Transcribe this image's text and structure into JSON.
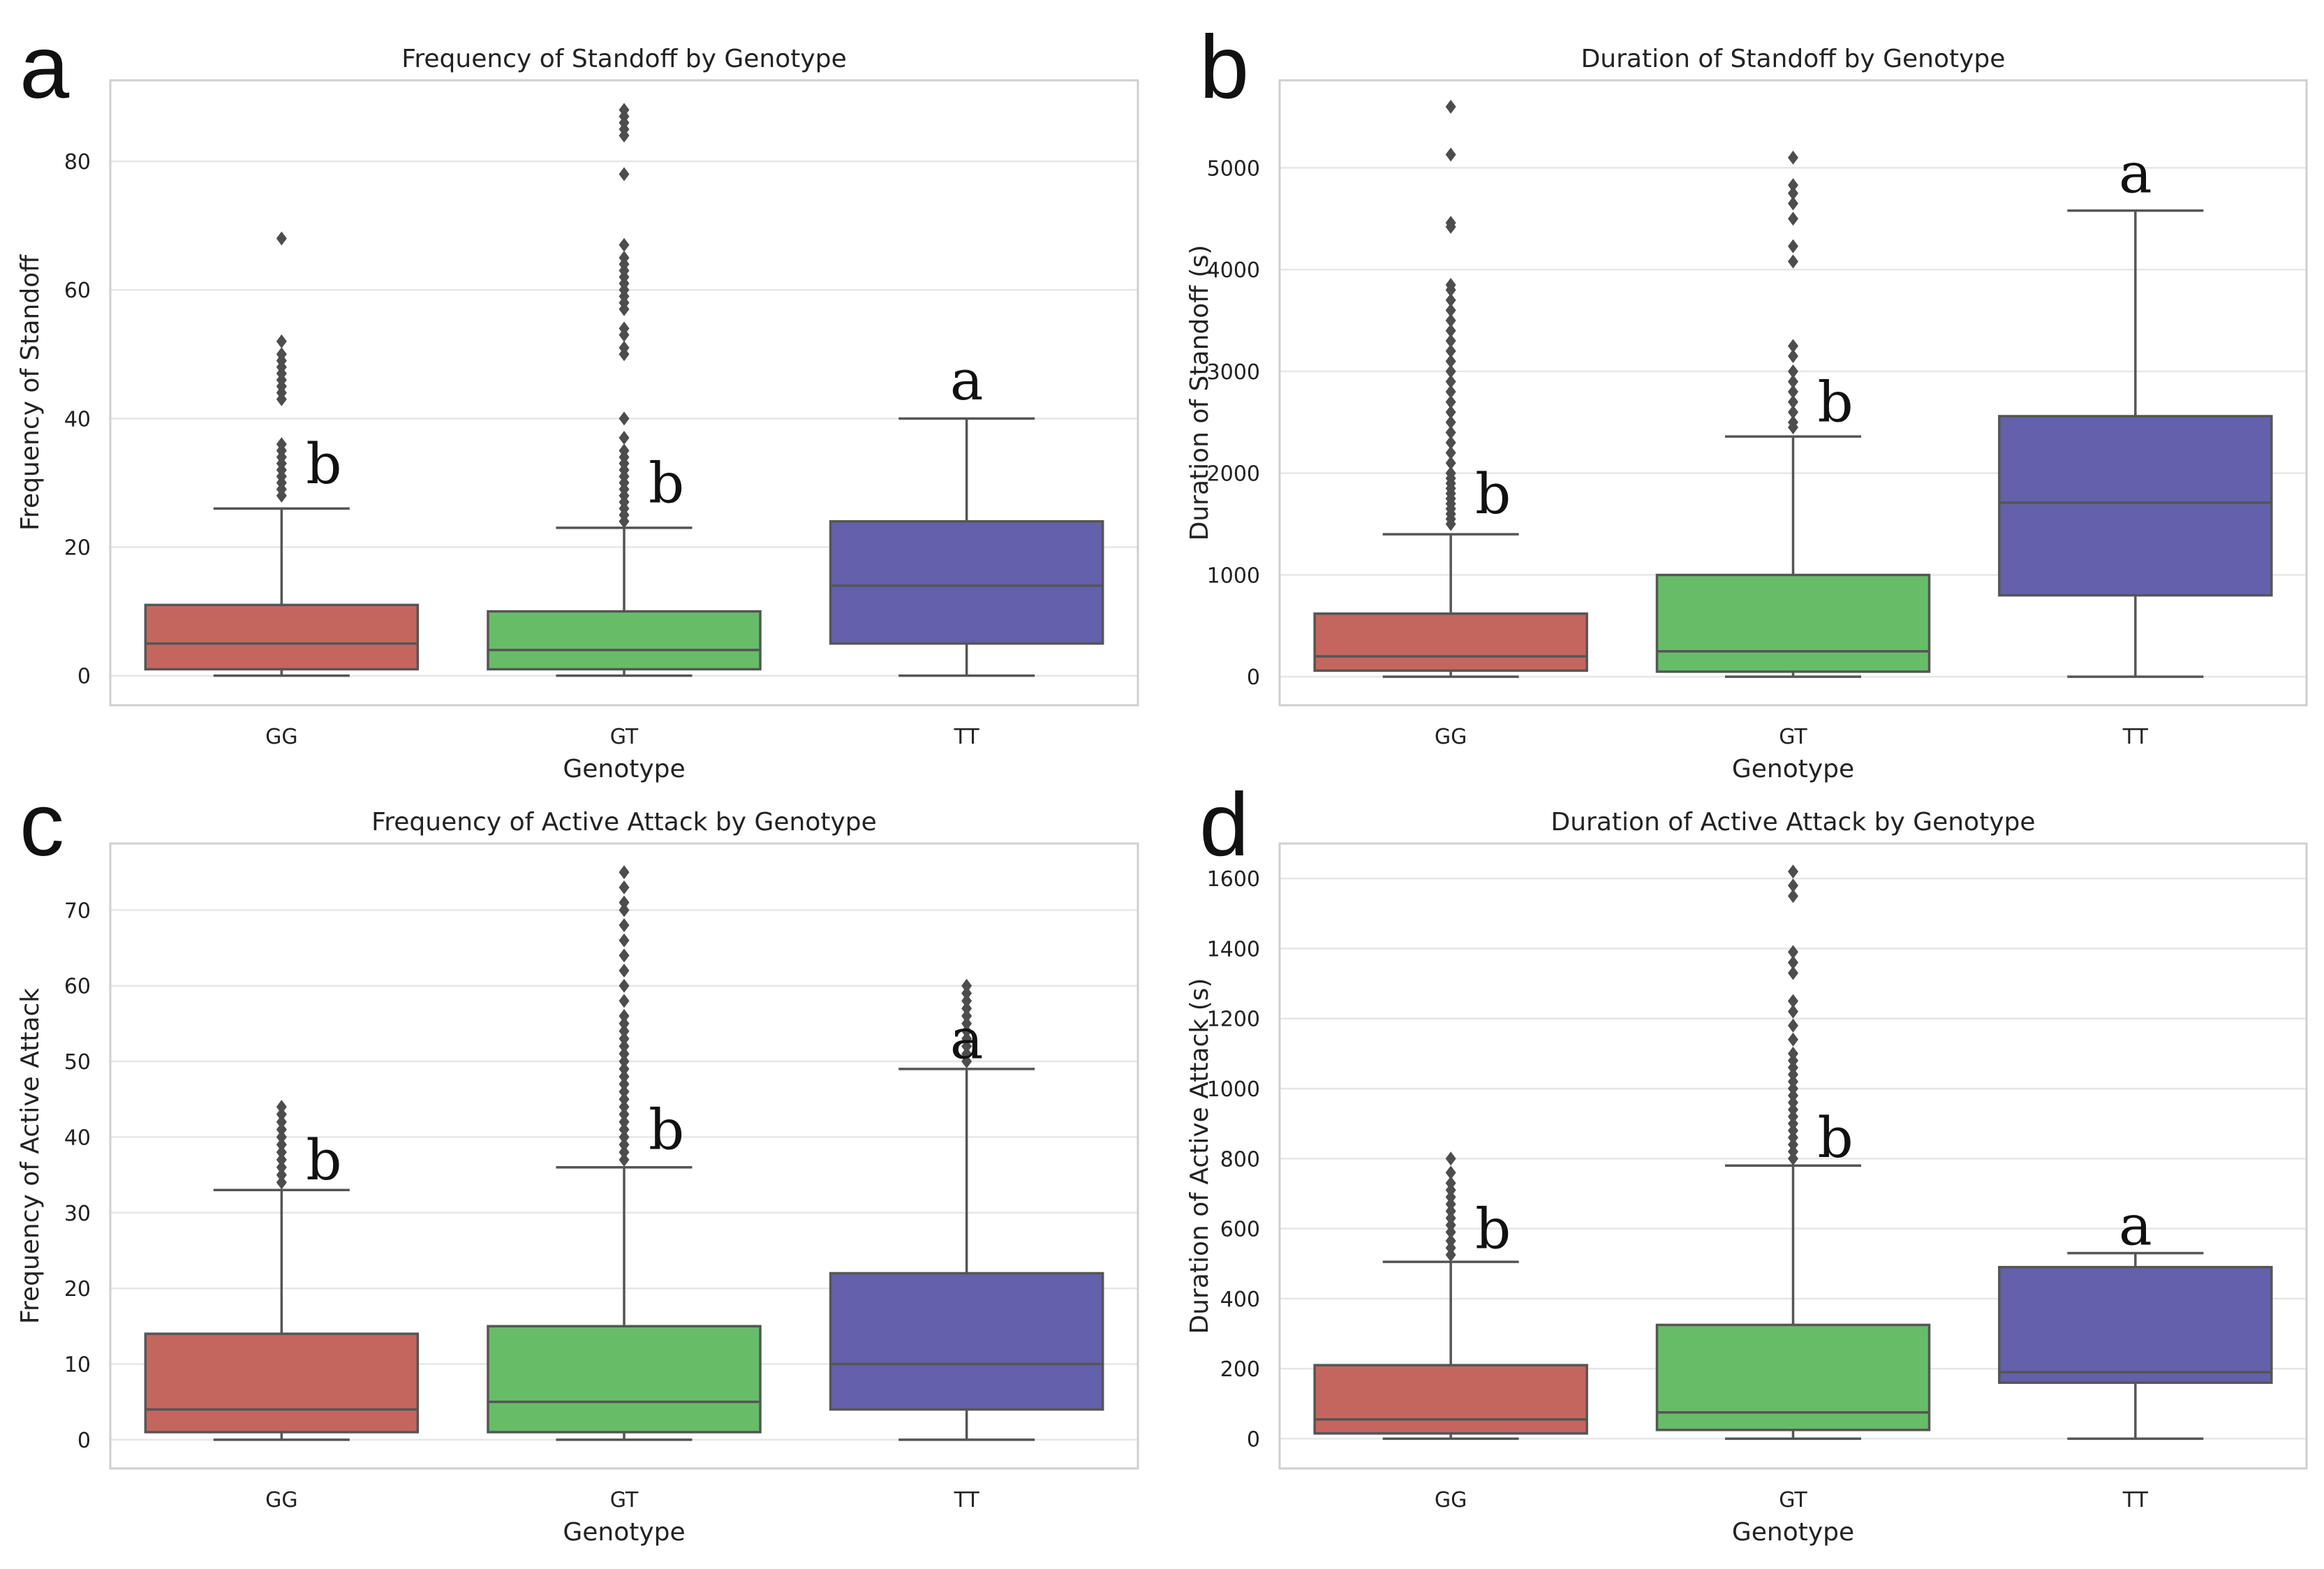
{
  "chart_data": [
    {
      "type": "box",
      "panel_letter": "a",
      "title": "Frequency of Standoff by Genotype",
      "xlabel": "Genotype",
      "ylabel": "Frequency of Standoff",
      "ylim": [
        -4.6,
        92.6
      ],
      "yticks": [
        0,
        20,
        40,
        60,
        80
      ],
      "categories": [
        "GG",
        "GT",
        "TT"
      ],
      "colors": [
        "#c5665e",
        "#67bd67",
        "#6360ac"
      ],
      "boxes": [
        {
          "min": 0,
          "q1": 1,
          "median": 5,
          "q3": 11,
          "max": 26,
          "outliers": [
            28,
            29,
            30,
            31,
            32,
            33,
            34,
            35,
            36,
            43,
            44,
            45,
            46,
            47,
            48,
            49,
            50,
            52,
            68
          ],
          "sig": "b",
          "sig_y": 33
        },
        {
          "min": 0,
          "q1": 1,
          "median": 4,
          "q3": 10,
          "max": 23,
          "outliers": [
            24,
            25,
            26,
            27,
            28,
            29,
            30,
            31,
            32,
            33,
            34,
            35,
            37,
            40,
            50,
            51,
            53,
            54,
            57,
            58,
            59,
            60,
            61,
            62,
            63,
            64,
            65,
            67,
            78,
            84,
            85,
            86,
            87,
            88
          ],
          "sig": "b",
          "sig_y": 30
        },
        {
          "min": 0,
          "q1": 5,
          "median": 14,
          "q3": 24,
          "max": 40,
          "outliers": [],
          "sig": "a",
          "sig_y": 46
        }
      ]
    },
    {
      "type": "box",
      "panel_letter": "b",
      "title": "Duration of Standoff by Genotype",
      "xlabel": "Genotype",
      "ylabel": "Duration of Standoff (s)",
      "ylim": [
        -280,
        5860
      ],
      "yticks": [
        0,
        1000,
        2000,
        3000,
        4000,
        5000
      ],
      "categories": [
        "GG",
        "GT",
        "TT"
      ],
      "colors": [
        "#c5665e",
        "#67bd67",
        "#6360ac"
      ],
      "boxes": [
        {
          "min": 0,
          "q1": 60,
          "median": 200,
          "q3": 620,
          "max": 1400,
          "outliers": [
            1500,
            1550,
            1600,
            1650,
            1700,
            1750,
            1800,
            1850,
            1900,
            1950,
            2000,
            2100,
            2200,
            2300,
            2400,
            2500,
            2600,
            2700,
            2800,
            2900,
            3000,
            3100,
            3200,
            3300,
            3400,
            3500,
            3600,
            3700,
            3800,
            3850,
            4420,
            4460,
            5130,
            5600
          ],
          "sig": "b",
          "sig_y": 1800
        },
        {
          "min": 0,
          "q1": 50,
          "median": 250,
          "q3": 1000,
          "max": 2360,
          "outliers": [
            2450,
            2500,
            2600,
            2700,
            2800,
            2900,
            3000,
            3150,
            3250,
            4080,
            4230,
            4500,
            4650,
            4750,
            4830,
            5100
          ],
          "sig": "b",
          "sig_y": 2700
        },
        {
          "min": 0,
          "q1": 800,
          "median": 1710,
          "q3": 2560,
          "max": 4580,
          "outliers": [],
          "sig": "a",
          "sig_y": 4950
        }
      ]
    },
    {
      "type": "box",
      "panel_letter": "c",
      "title": "Frequency of Active Attack by Genotype",
      "xlabel": "Genotype",
      "ylabel": "Frequency of Active Attack",
      "ylim": [
        -3.8,
        78.8
      ],
      "yticks": [
        0,
        10,
        20,
        30,
        40,
        50,
        60,
        70
      ],
      "categories": [
        "GG",
        "GT",
        "TT"
      ],
      "colors": [
        "#c5665e",
        "#67bd67",
        "#6360ac"
      ],
      "boxes": [
        {
          "min": 0,
          "q1": 1,
          "median": 4,
          "q3": 14,
          "max": 33,
          "outliers": [
            34,
            35,
            36,
            37,
            38,
            39,
            40,
            41,
            42,
            43,
            44
          ],
          "sig": "b",
          "sig_y": 37
        },
        {
          "min": 0,
          "q1": 1,
          "median": 5,
          "q3": 15,
          "max": 36,
          "outliers": [
            37,
            38,
            39,
            40,
            41,
            42,
            43,
            44,
            45,
            46,
            47,
            48,
            49,
            50,
            51,
            52,
            53,
            54,
            55,
            56,
            58,
            60,
            62,
            64,
            66,
            68,
            70,
            71,
            73,
            75
          ],
          "sig": "b",
          "sig_y": 41
        },
        {
          "min": 0,
          "q1": 4,
          "median": 10,
          "q3": 22,
          "max": 49,
          "outliers": [
            50,
            51,
            52,
            53,
            54,
            55,
            56,
            57,
            58,
            59,
            60
          ],
          "sig": "a",
          "sig_y": 53
        }
      ]
    },
    {
      "type": "box",
      "panel_letter": "d",
      "title": "Duration of Active Attack by Genotype",
      "xlabel": "Genotype",
      "ylabel": "Duration of Active Attack (s)",
      "ylim": [
        -85,
        1700
      ],
      "yticks": [
        0,
        200,
        400,
        600,
        800,
        1000,
        1200,
        1400,
        1600
      ],
      "categories": [
        "GG",
        "GT",
        "TT"
      ],
      "colors": [
        "#c5665e",
        "#67bd67",
        "#6360ac"
      ],
      "boxes": [
        {
          "min": 0,
          "q1": 15,
          "median": 55,
          "q3": 210,
          "max": 505,
          "outliers": [
            525,
            545,
            565,
            590,
            610,
            630,
            650,
            670,
            690,
            710,
            730,
            760,
            800
          ],
          "sig": "b",
          "sig_y": 600
        },
        {
          "min": 0,
          "q1": 25,
          "median": 75,
          "q3": 325,
          "max": 780,
          "outliers": [
            800,
            820,
            840,
            860,
            880,
            900,
            920,
            940,
            960,
            980,
            1000,
            1020,
            1040,
            1060,
            1080,
            1100,
            1140,
            1180,
            1220,
            1250,
            1330,
            1360,
            1390,
            1550,
            1580,
            1620
          ],
          "sig": "b",
          "sig_y": 860
        },
        {
          "min": 0,
          "q1": 160,
          "median": 190,
          "q3": 490,
          "max": 530,
          "outliers": [],
          "sig": "a",
          "sig_y": 610
        }
      ]
    }
  ]
}
